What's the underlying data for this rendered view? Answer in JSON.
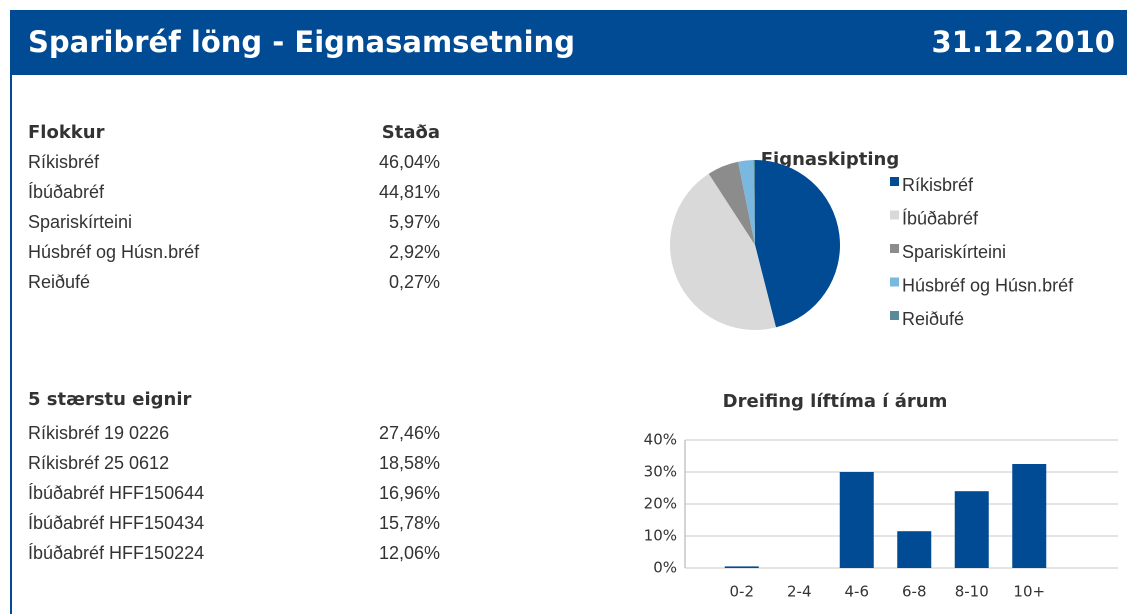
{
  "header": {
    "title": "Sparibréf löng - Eignasamsetning",
    "date": "31.12.2010"
  },
  "allocation_table": {
    "headers": [
      "Flokkur",
      "Staða"
    ],
    "rows": [
      [
        "Ríkisbréf",
        "46,04%"
      ],
      [
        "Íbúðabréf",
        "44,81%"
      ],
      [
        "Spariskírteini",
        "5,97%"
      ],
      [
        "Húsbréf og Húsn.bréf",
        "2,92%"
      ],
      [
        "Reiðufé",
        "0,27%"
      ]
    ]
  },
  "holdings_table": {
    "title": "5 stærstu eignir",
    "rows": [
      [
        "Ríkisbréf 19 0226",
        "27,46%"
      ],
      [
        "Ríkisbréf 25 0612",
        "18,58%"
      ],
      [
        "Íbúðabréf HFF150644",
        "16,96%"
      ],
      [
        "Íbúðabréf HFF150434",
        "15,78%"
      ],
      [
        "Íbúðabréf HFF150224",
        "12,06%"
      ]
    ]
  },
  "chart_data": [
    {
      "type": "pie",
      "title": "Eignaskipting",
      "categories": [
        "Ríkisbréf",
        "Íbúðabréf",
        "Spariskírteini",
        "Húsbréf og Húsn.bréf",
        "Reiðufé"
      ],
      "values": [
        46.04,
        44.81,
        5.97,
        2.92,
        0.27
      ],
      "colors": [
        "#004b93",
        "#d9d9d9",
        "#8c8c8c",
        "#7ab8e0",
        "#5b8a99"
      ],
      "legend": "right"
    },
    {
      "type": "bar",
      "title": "Dreifing líftíma í árum",
      "categories": [
        "0-2",
        "2-4",
        "4-6",
        "6-8",
        "8-10",
        "10+"
      ],
      "values": [
        0.5,
        0,
        30,
        11.5,
        24,
        32.5
      ],
      "color": "#004b93",
      "ylim": [
        0,
        40
      ],
      "yticks": [
        {
          "value": 0,
          "label": "0%"
        },
        {
          "value": 10,
          "label": "10%"
        },
        {
          "value": 20,
          "label": "20%"
        },
        {
          "value": 30,
          "label": "30%"
        },
        {
          "value": 40,
          "label": "40%"
        }
      ],
      "grid": true
    }
  ]
}
